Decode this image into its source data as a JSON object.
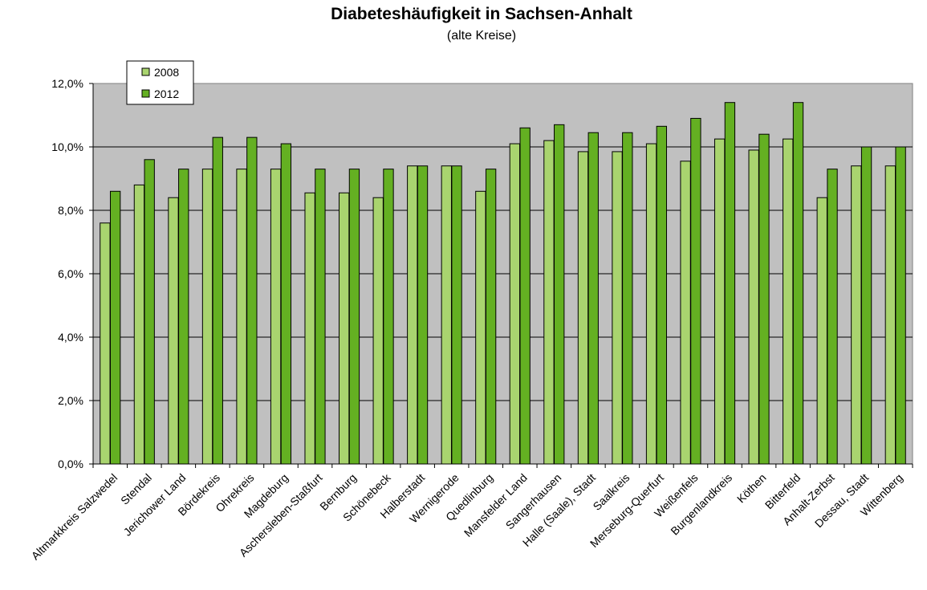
{
  "chart_data": {
    "type": "bar",
    "title": "Diabeteshäufigkeit in Sachsen-Anhalt",
    "subtitle": "(alte Kreise)",
    "xlabel": "",
    "ylabel": "",
    "ylim": [
      0,
      12
    ],
    "yticks": [
      "0,0%",
      "2,0%",
      "4,0%",
      "6,0%",
      "8,0%",
      "10,0%",
      "12,0%"
    ],
    "grid": true,
    "legend_position": "top-left",
    "categories": [
      "Altmarkkreis Salzwedel",
      "Stendal",
      "Jerichower Land",
      "Bördekreis",
      "Ohrekreis",
      "Magdeburg",
      "Aschersleben-Staßfurt",
      "Bernburg",
      "Schönebeck",
      "Halberstadt",
      "Wernigerode",
      "Quedlinburg",
      "Mansfelder Land",
      "Sangerhausen",
      "Halle (Saale), Stadt",
      "Saalkreis",
      "Merseburg-Querfurt",
      "Weißenfels",
      "Burgenlandkreis",
      "Köthen",
      "Bitterfeld",
      "Anhalt-Zerbst",
      "Dessau, Stadt",
      "Wittenberg"
    ],
    "series": [
      {
        "name": "2008",
        "color": "#a9d46f",
        "values": [
          7.6,
          8.8,
          8.4,
          9.3,
          9.3,
          9.3,
          8.55,
          8.55,
          8.4,
          9.4,
          9.4,
          8.6,
          10.1,
          10.2,
          9.85,
          9.85,
          10.1,
          9.55,
          10.25,
          9.9,
          10.25,
          8.4,
          9.4,
          9.4
        ]
      },
      {
        "name": "2012",
        "color": "#64b022",
        "values": [
          8.6,
          9.6,
          9.3,
          10.3,
          10.3,
          10.1,
          9.3,
          9.3,
          9.3,
          9.4,
          9.4,
          9.3,
          10.6,
          10.7,
          10.45,
          10.45,
          10.65,
          10.9,
          11.4,
          10.4,
          11.4,
          9.3,
          10.0,
          10.0
        ]
      }
    ],
    "plot_background": "#c0c0c0"
  }
}
